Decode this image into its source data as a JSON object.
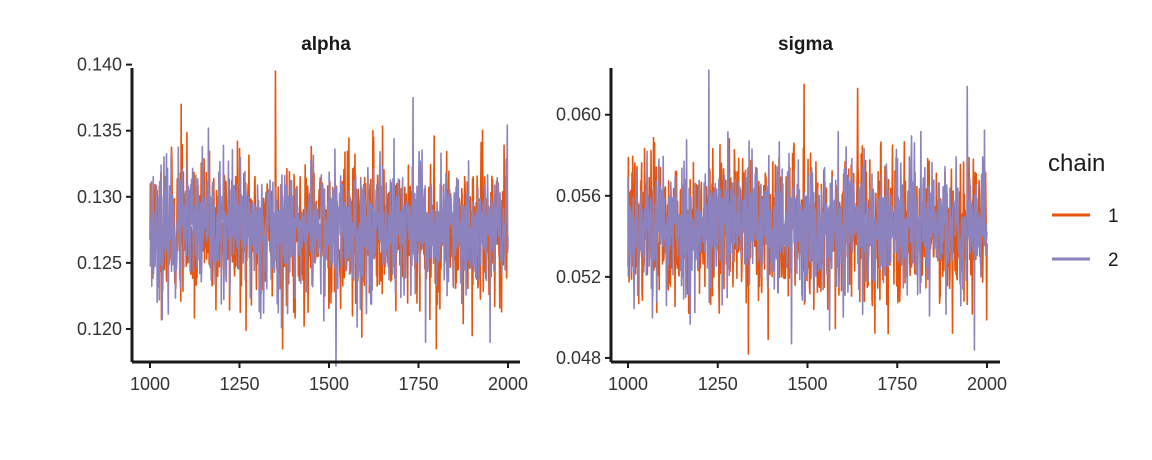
{
  "chart_data": [
    {
      "type": "line",
      "title": "alpha",
      "xlabel": "",
      "ylabel": "",
      "xlim": [
        1000,
        2000
      ],
      "ylim": [
        0.1175,
        0.1405
      ],
      "x_ticks": [
        1000,
        1250,
        1500,
        1750,
        2000
      ],
      "x_tick_labels": [
        "1000",
        "1250",
        "1500",
        "1750",
        "2000"
      ],
      "y_ticks": [
        0.12,
        0.125,
        0.13,
        0.135,
        0.14
      ],
      "y_tick_labels": [
        "0.120",
        "0.125",
        "0.130",
        "0.135",
        "0.140"
      ],
      "grid": false,
      "series": [
        {
          "name": "1",
          "color": "#E6550D",
          "mean": 0.1275,
          "sd": 0.0027,
          "min": 0.118,
          "max": 0.1395,
          "seed": 11,
          "extremes": [
            [
              1087,
              0.137
            ],
            [
              1350,
              0.1395
            ],
            [
              1370,
              0.1185
            ],
            [
              1625,
              0.1345
            ],
            [
              1800,
              0.1185
            ],
            [
              1900,
              0.1195
            ]
          ]
        },
        {
          "name": "2",
          "color": "#8C82BD",
          "mean": 0.1275,
          "sd": 0.0025,
          "min": 0.1172,
          "max": 0.1375,
          "seed": 23,
          "extremes": [
            [
              1520,
              0.1172
            ],
            [
              1735,
              0.1375
            ],
            [
              1770,
              0.119
            ],
            [
              1950,
              0.119
            ]
          ]
        }
      ],
      "n_points": 1000
    },
    {
      "type": "line",
      "title": "sigma",
      "xlabel": "",
      "ylabel": "",
      "xlim": [
        1000,
        2000
      ],
      "ylim": [
        0.0478,
        0.0628
      ],
      "x_ticks": [
        1000,
        1250,
        1500,
        1750,
        2000
      ],
      "x_tick_labels": [
        "1000",
        "1250",
        "1500",
        "1750",
        "2000"
      ],
      "y_ticks": [
        0.048,
        0.052,
        0.056,
        0.06
      ],
      "y_tick_labels": [
        "0.048",
        "0.052",
        "0.056",
        "0.060"
      ],
      "grid": false,
      "series": [
        {
          "name": "1",
          "color": "#E6550D",
          "mean": 0.0545,
          "sd": 0.0018,
          "min": 0.0482,
          "max": 0.0615,
          "seed": 37,
          "extremes": [
            [
              1335,
              0.0482
            ],
            [
              1490,
              0.0615
            ],
            [
              1640,
              0.0613
            ],
            [
              1725,
              0.0492
            ]
          ]
        },
        {
          "name": "2",
          "color": "#8C82BD",
          "mean": 0.0545,
          "sd": 0.0017,
          "min": 0.0483,
          "max": 0.0622,
          "seed": 53,
          "extremes": [
            [
              1225,
              0.0622
            ],
            [
              1455,
              0.0487
            ],
            [
              1945,
              0.0614
            ],
            [
              1965,
              0.0484
            ]
          ]
        }
      ],
      "n_points": 1000
    }
  ],
  "legend": {
    "title": "chain",
    "position": "right",
    "items": [
      {
        "label": "1",
        "color": "#E6550D"
      },
      {
        "label": "2",
        "color": "#8C82BD"
      }
    ]
  }
}
